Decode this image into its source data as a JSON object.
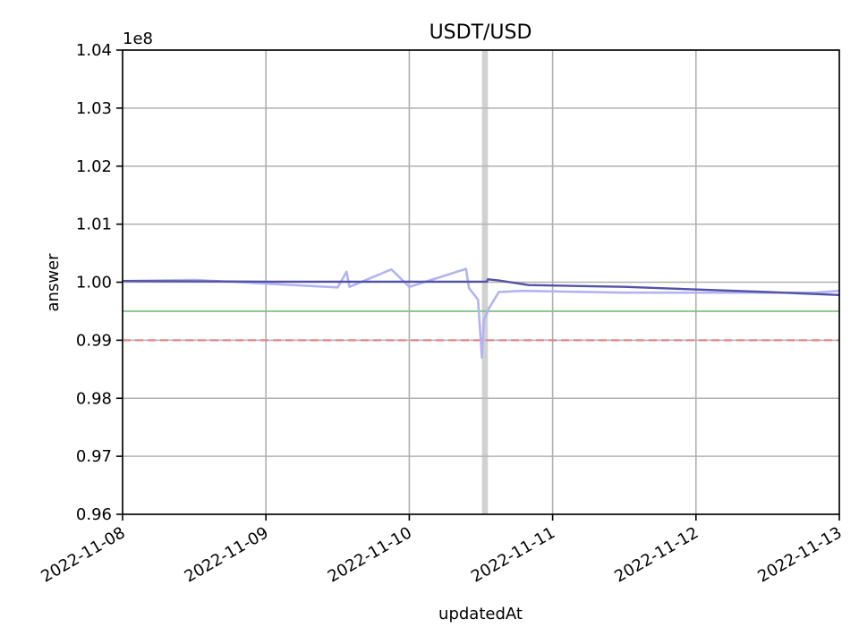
{
  "chart_data": {
    "type": "line",
    "title": "USDT/USD",
    "xlabel": "updatedAt",
    "ylabel": "answer",
    "y_multiplier_label": "1e8",
    "xlim": [
      "2022-11-08",
      "2022-11-13"
    ],
    "ylim": [
      0.96,
      1.04
    ],
    "x_ticks": [
      "2022-11-08",
      "2022-11-09",
      "2022-11-10",
      "2022-11-11",
      "2022-11-12",
      "2022-11-13"
    ],
    "y_ticks": [
      "0.96",
      "0.97",
      "0.98",
      "0.99",
      "1.00",
      "1.01",
      "1.02",
      "1.03",
      "1.04"
    ],
    "grid": true,
    "series": [
      {
        "color": "#b3b3f2",
        "x": [
          "2022-11-08T00:00",
          "2022-11-08T12:00",
          "2022-11-09T12:00",
          "2022-11-09T13:30",
          "2022-11-09T14:00",
          "2022-11-09T21:00",
          "2022-11-10T00:00",
          "2022-11-10T09:30",
          "2022-11-10T10:00",
          "2022-11-10T11:30",
          "2022-11-10T12:10",
          "2022-11-10T12:30",
          "2022-11-10T13:20",
          "2022-11-10T15:00",
          "2022-11-10T19:00",
          "2022-11-11T12:00",
          "2022-11-12T20:00",
          "2022-11-13T00:00"
        ],
        "y": [
          1.0002,
          1.0004,
          0.9991,
          1.0018,
          0.9992,
          1.0022,
          0.9992,
          1.0023,
          0.999,
          0.997,
          0.987,
          0.9935,
          0.9955,
          0.9983,
          0.9985,
          0.9982,
          0.9982,
          0.9985
        ]
      },
      {
        "color": "#5252a8",
        "x": [
          "2022-11-08T00:00",
          "2022-11-09T00:00",
          "2022-11-10T00:00",
          "2022-11-10T13:00",
          "2022-11-10T13:10",
          "2022-11-10T15:00",
          "2022-11-10T20:00",
          "2022-11-11T12:00",
          "2022-11-12T12:00",
          "2022-11-13T00:00"
        ],
        "y": [
          1.0002,
          1.0001,
          1.0001,
          1.0001,
          1.0005,
          1.0003,
          0.9995,
          0.9992,
          0.9983,
          0.9978
        ]
      }
    ],
    "reference_lines": [
      {
        "y": 0.995,
        "color": "#7fbf7f",
        "style": "solid"
      },
      {
        "y": 0.99,
        "color": "#e87b7b",
        "style": "dashed"
      }
    ],
    "highlight_span": {
      "x0": "2022-11-10T12:10",
      "x1": "2022-11-10T13:10",
      "color": "#b8b8b8"
    }
  }
}
